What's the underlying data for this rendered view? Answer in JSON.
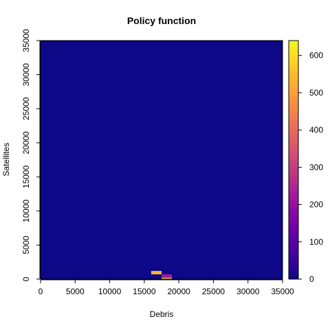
{
  "chart_data": {
    "type": "heatmap",
    "title": "Policy function",
    "xlabel": "Debris",
    "ylabel": "Satellites",
    "xlim": [
      0,
      35000
    ],
    "ylim": [
      0,
      35000
    ],
    "x_ticks": [
      "0",
      "5000",
      "10000",
      "15000",
      "20000",
      "25000",
      "30000",
      "35000"
    ],
    "y_ticks": [
      "0",
      "5000",
      "10000",
      "15000",
      "20000",
      "25000",
      "30000",
      "35000"
    ],
    "colorbar": {
      "min": 0,
      "max": 640,
      "ticks": [
        "0",
        "100",
        "200",
        "300",
        "400",
        "500",
        "600"
      ],
      "palette": "plasma"
    },
    "background_value": 0,
    "cells": [
      {
        "x0": 16000,
        "x1": 17500,
        "y0": 700,
        "y1": 1200,
        "value": 540
      },
      {
        "x0": 17500,
        "x1": 19000,
        "y0": 200,
        "y1": 700,
        "value": 220
      },
      {
        "x0": 17500,
        "x1": 19000,
        "y0": -300,
        "y1": 200,
        "value": 560
      }
    ],
    "grid": false,
    "legend": "right"
  },
  "colors": {
    "low": "#0d0887",
    "high": "#f0f921"
  }
}
